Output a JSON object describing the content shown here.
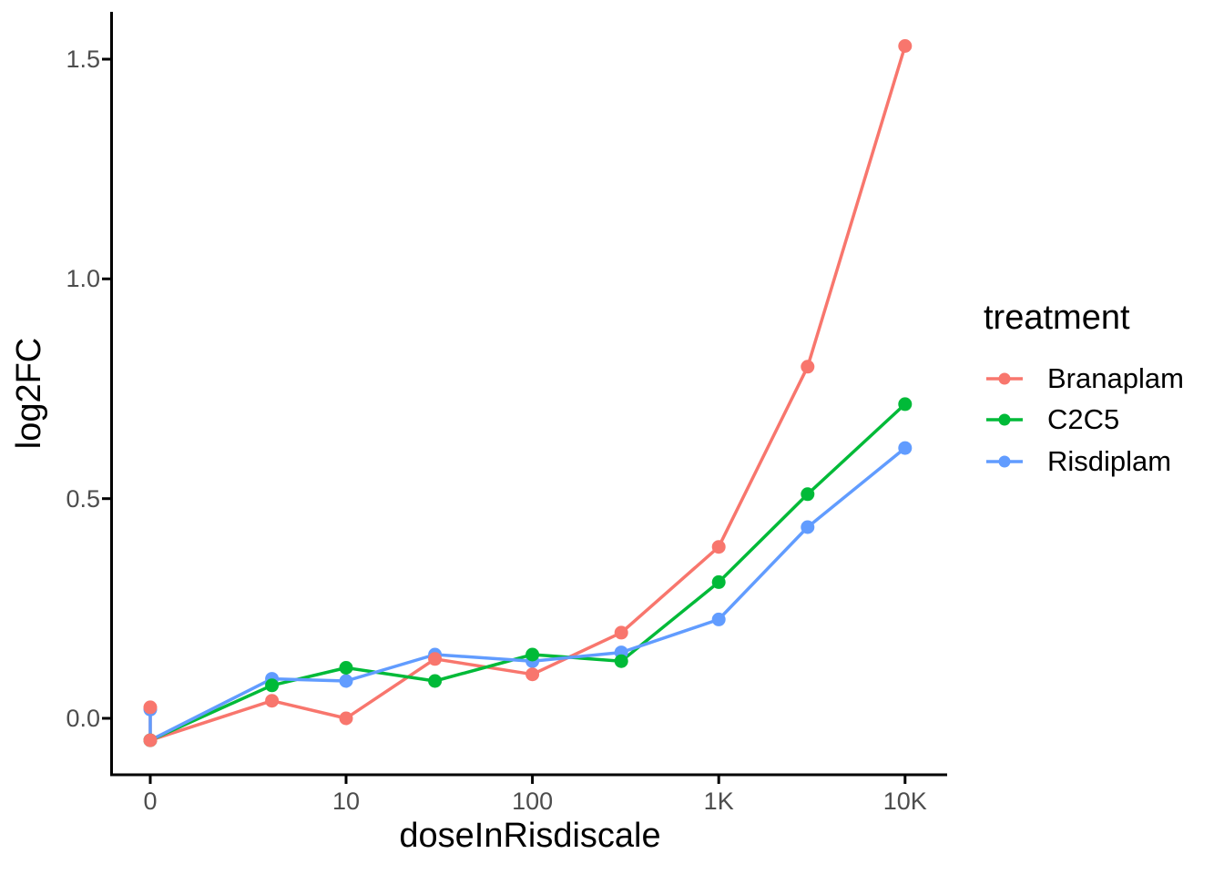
{
  "chart_data": {
    "type": "line",
    "title": "",
    "xlabel": "doseInRisdiscale",
    "ylabel": "log2FC",
    "x_scale": "log10 (zero plotted at left origin)",
    "grid": false,
    "background": "#ffffff",
    "axis_color": "#000000",
    "tick_label_color": "#4d4d4d",
    "xlim_doses": [
      0,
      10000
    ],
    "ylim": [
      -0.12,
      1.58
    ],
    "x_ticks": [
      {
        "label": "0",
        "value": 0
      },
      {
        "label": "10",
        "value": 10
      },
      {
        "label": "100",
        "value": 100
      },
      {
        "label": "1K",
        "value": 1000
      },
      {
        "label": "10K",
        "value": 10000
      }
    ],
    "y_ticks": [
      {
        "label": "0.0",
        "value": 0.0
      },
      {
        "label": "0.5",
        "value": 0.5
      },
      {
        "label": "1.0",
        "value": 1.0
      },
      {
        "label": "1.5",
        "value": 1.5
      }
    ],
    "legend": {
      "title": "treatment",
      "position": "right"
    },
    "series": [
      {
        "name": "Branaplam",
        "color": "#F8766D",
        "points": [
          [
            0,
            0.025
          ],
          [
            0,
            -0.05
          ],
          [
            4,
            0.04
          ],
          [
            10,
            0.0
          ],
          [
            30,
            0.135
          ],
          [
            100,
            0.1
          ],
          [
            300,
            0.195
          ],
          [
            1000,
            0.39
          ],
          [
            3000,
            0.8
          ],
          [
            10000,
            1.53
          ]
        ]
      },
      {
        "name": "C2C5",
        "color": "#00BA38",
        "points": [
          [
            0,
            -0.05
          ],
          [
            4,
            0.075
          ],
          [
            10,
            0.115
          ],
          [
            30,
            0.085
          ],
          [
            100,
            0.145
          ],
          [
            300,
            0.13
          ],
          [
            1000,
            0.31
          ],
          [
            3000,
            0.51
          ],
          [
            10000,
            0.715
          ]
        ]
      },
      {
        "name": "Risdiplam",
        "color": "#619CFF",
        "points": [
          [
            0,
            0.02
          ],
          [
            0,
            -0.05
          ],
          [
            4,
            0.09
          ],
          [
            10,
            0.085
          ],
          [
            30,
            0.145
          ],
          [
            100,
            0.13
          ],
          [
            300,
            0.15
          ],
          [
            1000,
            0.225
          ],
          [
            3000,
            0.435
          ],
          [
            10000,
            0.615
          ]
        ]
      }
    ]
  }
}
